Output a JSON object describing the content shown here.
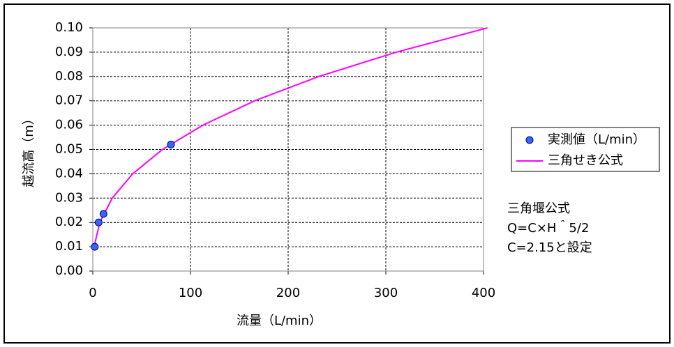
{
  "chart_data": {
    "type": "scatter-line",
    "x_label": "流量（L/min）",
    "y_label": "越流高（m）",
    "series": [
      {
        "name": "実測値（L/min）",
        "kind": "scatter",
        "color": "#3366ff",
        "x": [
          2,
          6,
          11,
          80
        ],
        "values": [
          0.01,
          0.02,
          0.0235,
          0.052
        ]
      },
      {
        "name": "三角せき公式",
        "kind": "line",
        "color": "#ff00ff",
        "x": [
          1.3,
          7.2,
          19.9,
          40.9,
          71.4,
          112.7,
          165.7,
          231.3,
          310.6,
          404
        ],
        "values": [
          0.01,
          0.02,
          0.03,
          0.04,
          0.05,
          0.06,
          0.07,
          0.08,
          0.09,
          0.1
        ]
      }
    ],
    "annotations": [
      "三角堰公式",
      "Q=C×H＾5/2",
      "C=2.15と設定"
    ],
    "xlim": [
      0,
      400
    ],
    "xticks": [
      0,
      100,
      200,
      300,
      400
    ],
    "ylim": [
      0,
      0.1
    ],
    "yticks": [
      {
        "value": 0,
        "label": "0.00"
      },
      {
        "value": 0.01,
        "label": "0.01"
      },
      {
        "value": 0.02,
        "label": "0.02"
      },
      {
        "value": 0.03,
        "label": "0.03"
      },
      {
        "value": 0.04,
        "label": "0.04"
      },
      {
        "value": 0.05,
        "label": "0.05"
      },
      {
        "value": 0.06,
        "label": "0.06"
      },
      {
        "value": 0.07,
        "label": "0.07"
      },
      {
        "value": 0.08,
        "label": "0.08"
      },
      {
        "value": 0.09,
        "label": "0.09"
      },
      {
        "value": 0.1,
        "label": "0.10"
      }
    ],
    "grid": true,
    "legend": "right"
  }
}
